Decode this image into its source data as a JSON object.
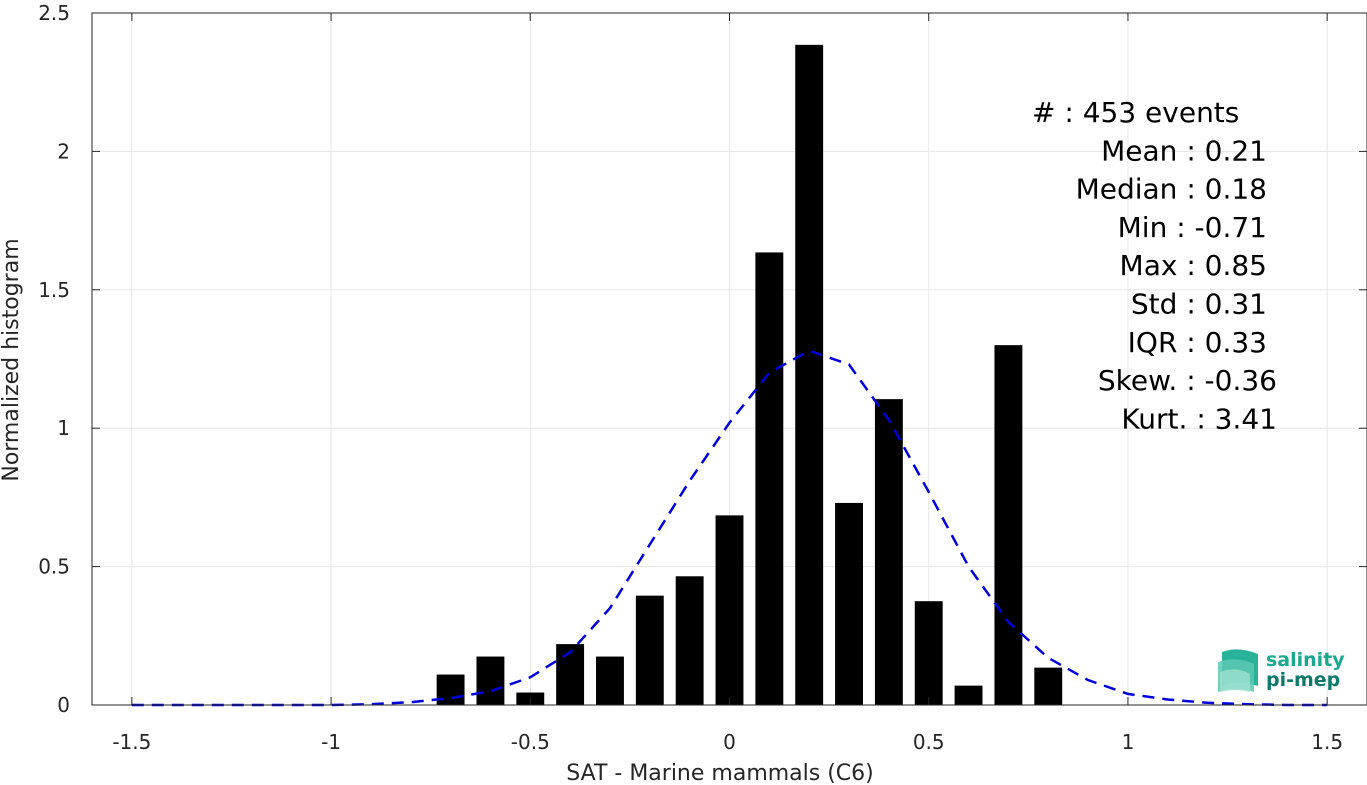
{
  "chart_data": {
    "type": "bar",
    "xlabel": "SAT - Marine mammals (C6)",
    "ylabel": "Normalized histogram",
    "xlim": [
      -1.6,
      1.6
    ],
    "ylim": [
      0,
      2.5
    ],
    "xticks": [
      -1.5,
      -1,
      -0.5,
      0,
      0.5,
      1,
      1.5
    ],
    "xtick_labels": [
      "-1.5",
      "-1",
      "-0.5",
      "0",
      "0.5",
      "1",
      "1.5"
    ],
    "yticks": [
      0,
      0.5,
      1,
      1.5,
      2,
      2.5
    ],
    "ytick_labels": [
      "0",
      "0.5",
      "1",
      "1.5",
      "2",
      "2.5"
    ],
    "grid": true,
    "bar_width": 0.07,
    "bars": {
      "x": [
        -0.7,
        -0.6,
        -0.5,
        -0.4,
        -0.3,
        -0.2,
        -0.1,
        0.0,
        0.1,
        0.2,
        0.3,
        0.4,
        0.5,
        0.6,
        0.7,
        0.8
      ],
      "values": [
        0.11,
        0.175,
        0.045,
        0.22,
        0.175,
        0.395,
        0.465,
        0.685,
        1.635,
        2.385,
        0.73,
        1.105,
        0.375,
        0.07,
        1.3,
        0.135
      ],
      "color": "#000000"
    },
    "fit_curve": {
      "style": "dashed",
      "color": "#0000dd",
      "x": [
        -1.5,
        -1.4,
        -1.3,
        -1.2,
        -1.1,
        -1.0,
        -0.9,
        -0.8,
        -0.7,
        -0.6,
        -0.5,
        -0.4,
        -0.3,
        -0.2,
        -0.1,
        0.0,
        0.1,
        0.2,
        0.3,
        0.4,
        0.5,
        0.6,
        0.7,
        0.8,
        0.9,
        1.0,
        1.1,
        1.2,
        1.3,
        1.4,
        1.5
      ],
      "y": [
        0.0,
        0.0,
        0.0,
        0.0,
        0.0,
        0.0,
        0.003,
        0.01,
        0.025,
        0.05,
        0.1,
        0.19,
        0.35,
        0.58,
        0.81,
        1.02,
        1.2,
        1.28,
        1.23,
        1.03,
        0.77,
        0.5,
        0.3,
        0.17,
        0.09,
        0.04,
        0.02,
        0.008,
        0.003,
        0.0,
        0.0
      ]
    },
    "stats": [
      {
        "label": "#  : 453 events",
        "anchor": "start"
      },
      {
        "label": "Mean : 0.21",
        "anchor": "end"
      },
      {
        "label": "Median : 0.18",
        "anchor": "end"
      },
      {
        "label": "Min : -0.71",
        "anchor": "end"
      },
      {
        "label": "Max : 0.85",
        "anchor": "end"
      },
      {
        "label": "Std : 0.31",
        "anchor": "end"
      },
      {
        "label": "IQR : 0.33",
        "anchor": "end"
      },
      {
        "label": "Skew. : -0.36",
        "anchor": "end"
      },
      {
        "label": "Kurt. : 3.41",
        "anchor": "end"
      }
    ]
  },
  "logo": {
    "line1": "salinity",
    "line2": "pi-mep",
    "color1": "#1aa88f",
    "color2": "#0f7a6a"
  }
}
